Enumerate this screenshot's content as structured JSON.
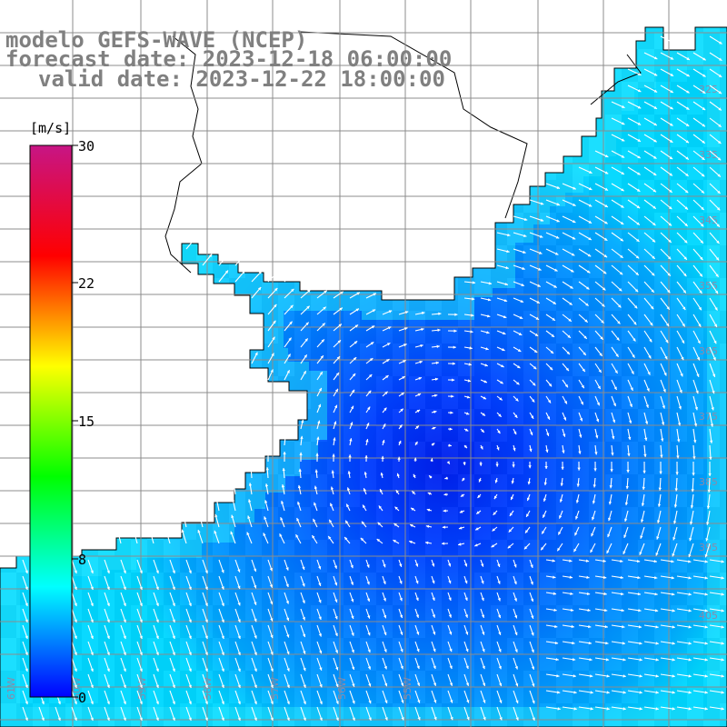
{
  "header": {
    "model": "modelo GEFS-WAVE (NCEP)",
    "forecast": "forecast date: 2023-12-18 06:00:00",
    "valid": "valid date: 2023-12-22 18:00:00"
  },
  "colorbar": {
    "unit": "[m/s]",
    "ticks": [
      "30",
      "22",
      "15",
      "8",
      "0"
    ],
    "min": 0,
    "max": 30,
    "stops": [
      "#0000ff",
      "#00ffff",
      "#00ff00",
      "#ffff00",
      "#ff0000",
      "#c71585"
    ]
  },
  "grid": {
    "lat_labels": [
      "325",
      "335",
      "345",
      "355",
      "365",
      "375",
      "385",
      "395",
      "405"
    ],
    "lon_labels": [
      "61W",
      "60W",
      "59W",
      "58W",
      "57W",
      "56W",
      "55W"
    ],
    "label_color": "#8a8aaa"
  },
  "map": {
    "field": "wind speed",
    "land_color": "#ffffff",
    "coast_color": "#000000",
    "arrow_color": "#ffffff",
    "calm_center_speed_ms": 0,
    "typical_speed_ms": 6
  }
}
